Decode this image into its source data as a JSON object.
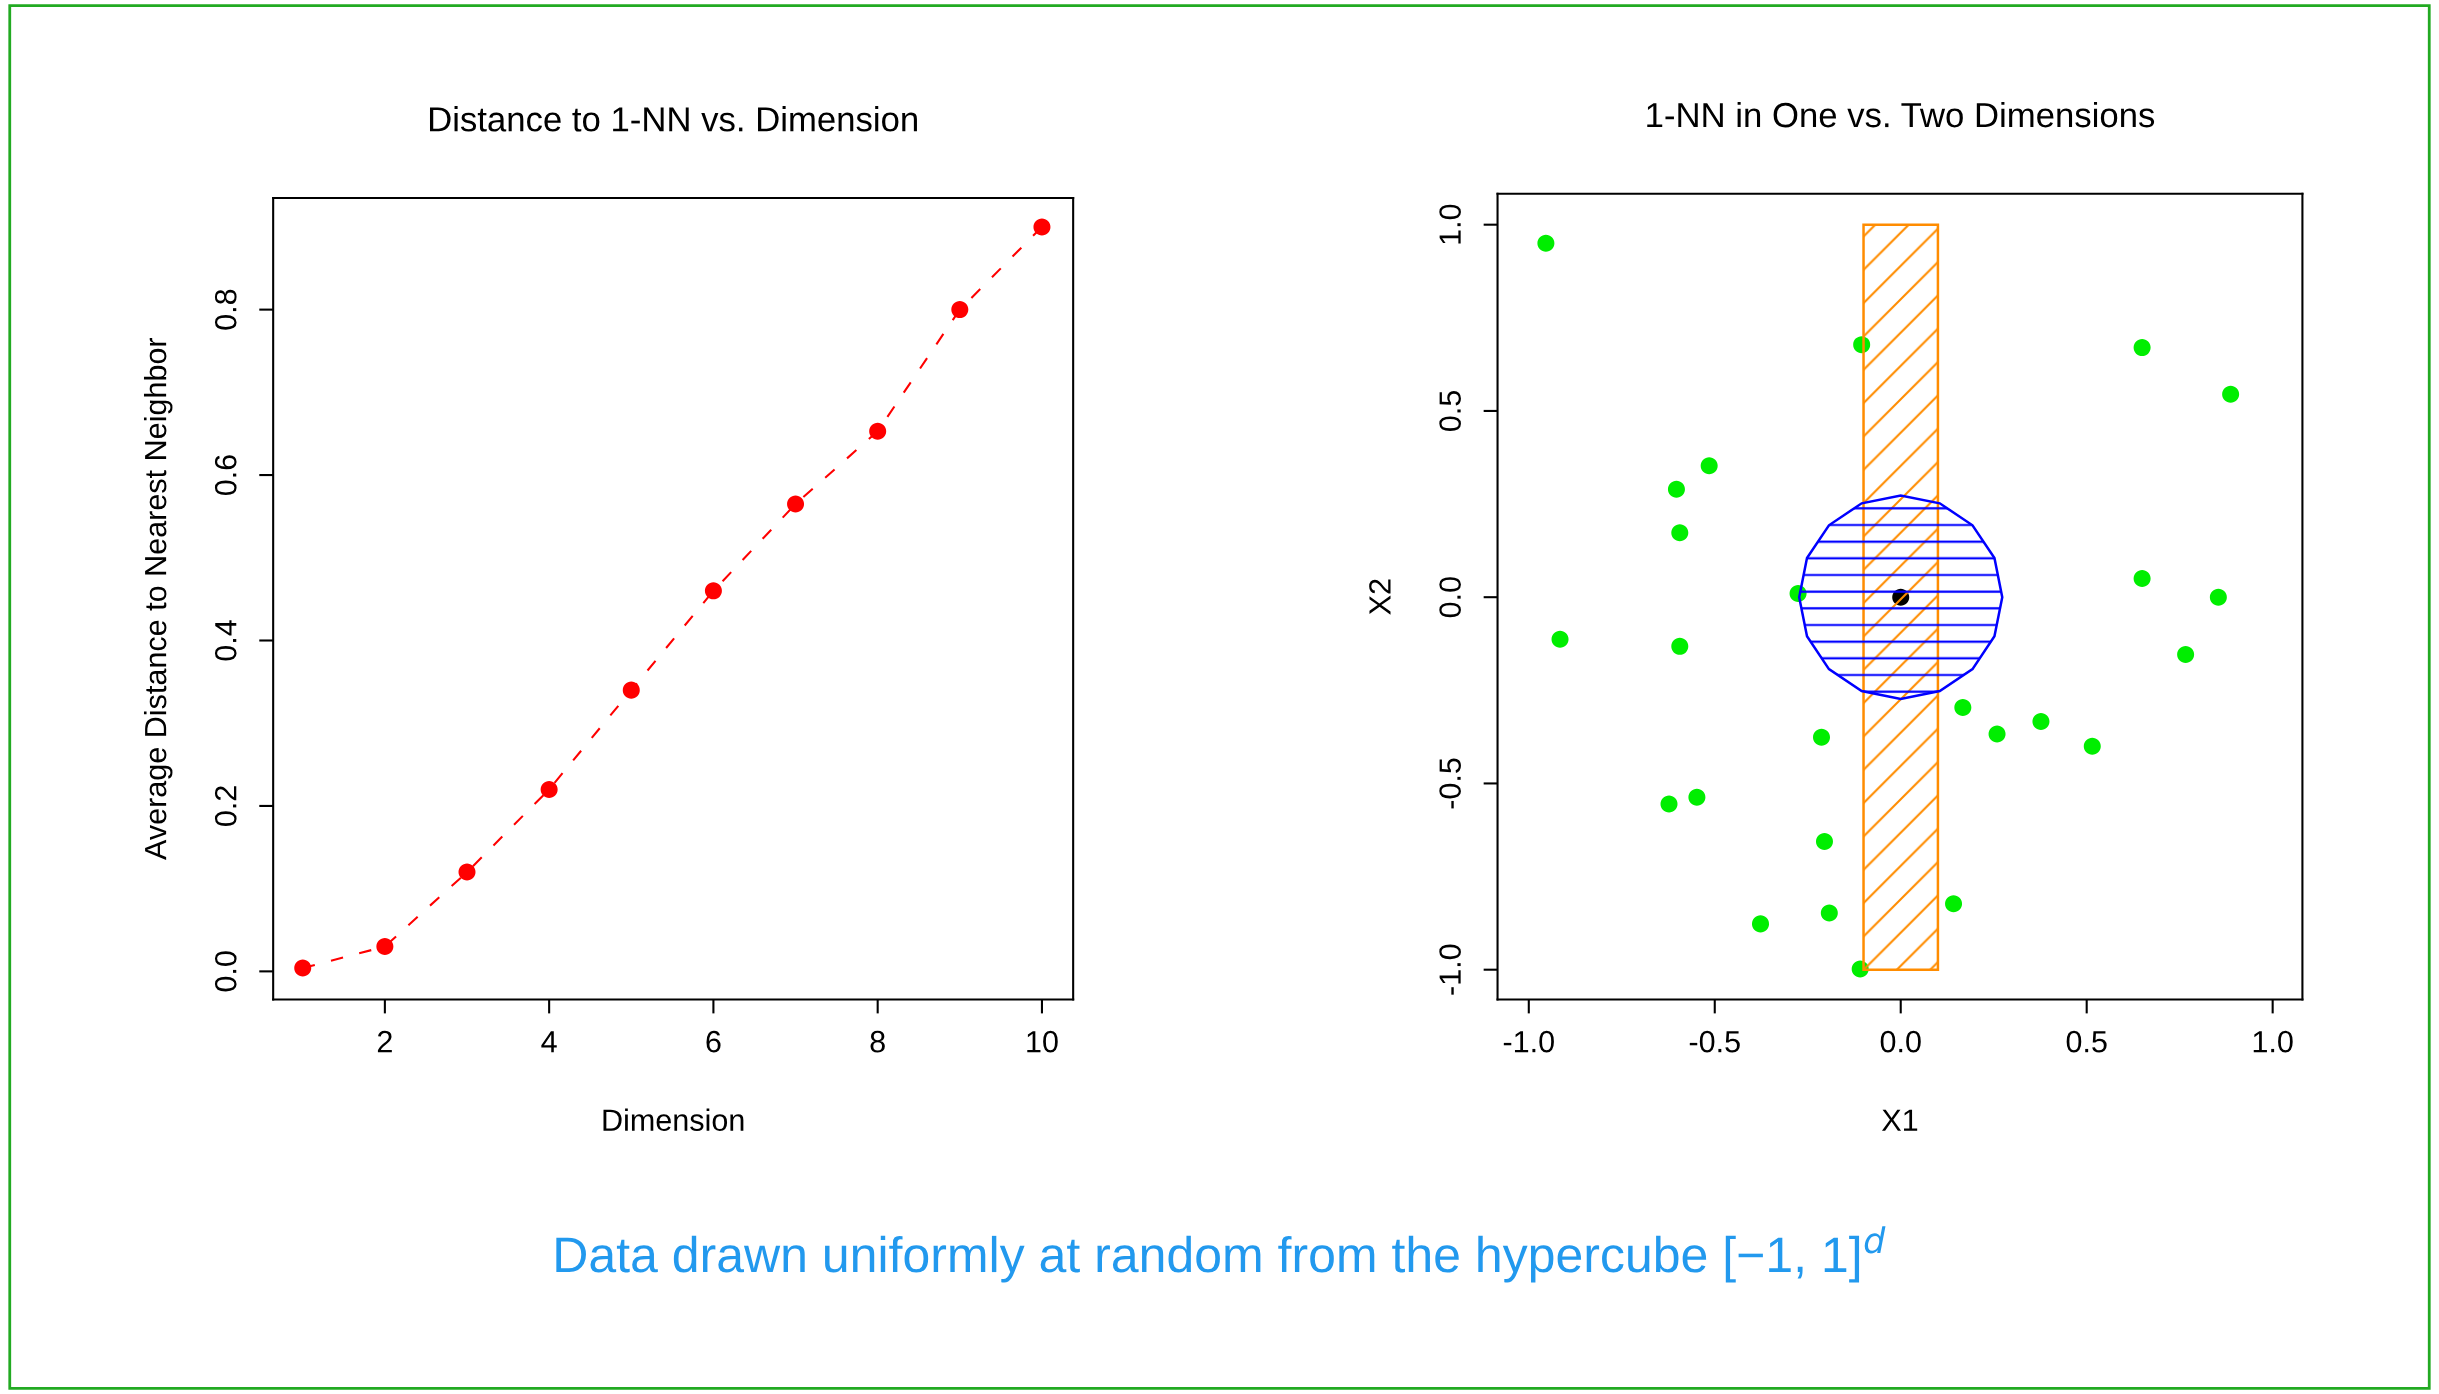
{
  "chart_data": [
    {
      "type": "line",
      "title": "Distance to 1-NN vs. Dimension",
      "xlabel": "Dimension",
      "ylabel": "Average Distance to Nearest Neighbor",
      "x": [
        1,
        2,
        3,
        4,
        5,
        6,
        7,
        8,
        9,
        10
      ],
      "series": [
        {
          "color": "#ff0000",
          "values": [
            0.004,
            0.03,
            0.12,
            0.22,
            0.34,
            0.46,
            0.565,
            0.653,
            0.8,
            0.9
          ]
        }
      ],
      "marker": "circle",
      "line_style": "dashed",
      "grid": false,
      "xlim": [
        0.64,
        10.38
      ],
      "xticks": [
        2,
        4,
        6,
        8,
        10
      ],
      "ylim": [
        -0.034,
        0.935
      ],
      "yticks": [
        {
          "value": 0,
          "label": "0.0"
        },
        {
          "value": 0.2,
          "label": "0.2"
        },
        {
          "value": 0.4,
          "label": "0.4"
        },
        {
          "value": 0.6,
          "label": "0.6"
        },
        {
          "value": 0.8,
          "label": "0.8"
        }
      ]
    },
    {
      "type": "scatter",
      "title": "1-NN in One vs. Two Dimensions",
      "xlabel": "X1",
      "ylabel": "X2",
      "grid": false,
      "series": [
        {
          "type": "area",
          "color": "#ff8c00",
          "x": [
            -0.1,
            0.1,
            0.1,
            -0.1,
            -0.1
          ],
          "values": [
            -1,
            -1,
            1,
            1,
            -1
          ]
        },
        {
          "type": "area",
          "color": "#0000ff",
          "x": [
            0.273,
            0.252,
            0.193,
            0.105,
            0,
            -0.105,
            -0.193,
            -0.252,
            -0.273,
            -0.252,
            -0.193,
            -0.105,
            0,
            0.105,
            0.193,
            0.252,
            0.273
          ],
          "values": [
            0,
            0.105,
            0.193,
            0.252,
            0.273,
            0.252,
            0.193,
            0.105,
            0,
            -0.105,
            -0.193,
            -0.252,
            -0.273,
            -0.252,
            -0.193,
            -0.105,
            0
          ]
        },
        {
          "color": "#00ee00",
          "x": [
            -0.954,
            -0.105,
            0.649,
            0.887,
            -0.515,
            -0.603,
            -0.594,
            -0.276,
            0.649,
            0.854,
            -0.916,
            -0.594,
            0.766,
            0.167,
            -0.213,
            0.259,
            0.377,
            0.515,
            -0.623,
            -0.548,
            -0.205,
            -0.377,
            -0.192,
            0.142,
            -0.109
          ],
          "values": [
            0.95,
            0.678,
            0.67,
            0.545,
            0.353,
            0.29,
            0.173,
            0.01,
            0.05,
            0,
            -0.113,
            -0.132,
            -0.154,
            -0.296,
            -0.376,
            -0.367,
            -0.334,
            -0.4,
            -0.555,
            -0.537,
            -0.656,
            -0.877,
            -0.848,
            -0.823,
            -0.998
          ]
        },
        {
          "color": "#000000",
          "x": [
            0
          ],
          "values": [
            0
          ]
        }
      ],
      "xlim": [
        -1.084,
        1.08
      ],
      "xticks": [
        {
          "value": -1,
          "label": "-1.0"
        },
        {
          "value": -0.5,
          "label": "-0.5"
        },
        {
          "value": 0,
          "label": "0.0"
        },
        {
          "value": 0.5,
          "label": "0.5"
        },
        {
          "value": 1,
          "label": "1.0"
        }
      ],
      "ylim": [
        -1.08,
        1.083
      ],
      "yticks": [
        {
          "value": -1,
          "label": "-1.0"
        },
        {
          "value": -0.5,
          "label": "-0.5"
        },
        {
          "value": 0,
          "label": "0.0"
        },
        {
          "value": 0.5,
          "label": "0.5"
        },
        {
          "value": 1,
          "label": "1.0"
        }
      ],
      "annotations": [
        "Data drawn uniformly at random from the hypercube [−1, 1]$^{d}$"
      ]
    }
  ]
}
